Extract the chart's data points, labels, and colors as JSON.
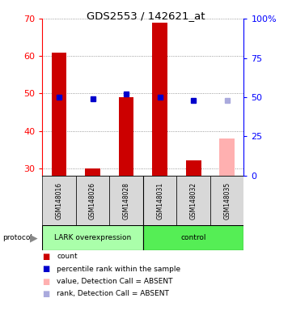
{
  "title": "GDS2553 / 142621_at",
  "samples": [
    "GSM148016",
    "GSM148026",
    "GSM148028",
    "GSM148031",
    "GSM148032",
    "GSM148035"
  ],
  "count_values": [
    61.0,
    30.0,
    49.0,
    69.0,
    32.0,
    null
  ],
  "count_absent": [
    null,
    null,
    null,
    null,
    null,
    38.0
  ],
  "rank_values": [
    50.0,
    49.0,
    52.0,
    50.0,
    48.0,
    null
  ],
  "rank_absent": [
    null,
    null,
    null,
    null,
    null,
    48.0
  ],
  "ylim_left": [
    28,
    70
  ],
  "ylim_right": [
    0,
    100
  ],
  "yticks_left": [
    30,
    40,
    50,
    60,
    70
  ],
  "yticks_right": [
    0,
    25,
    50,
    75,
    100
  ],
  "bar_color_present": "#cc0000",
  "bar_color_absent": "#ffb0b0",
  "rank_color_present": "#0000cc",
  "rank_color_absent": "#aaaadd",
  "group_lark_label": "LARK overexpression",
  "group_control_label": "control",
  "group_lark_color": "#aaffaa",
  "group_control_color": "#55ee55",
  "bar_width": 0.45,
  "protocol_label": "protocol",
  "sample_box_color": "#d8d8d8",
  "legend_items": [
    {
      "label": "count",
      "color": "#cc0000"
    },
    {
      "label": "percentile rank within the sample",
      "color": "#0000cc"
    },
    {
      "label": "value, Detection Call = ABSENT",
      "color": "#ffb0b0"
    },
    {
      "label": "rank, Detection Call = ABSENT",
      "color": "#aaaadd"
    }
  ]
}
